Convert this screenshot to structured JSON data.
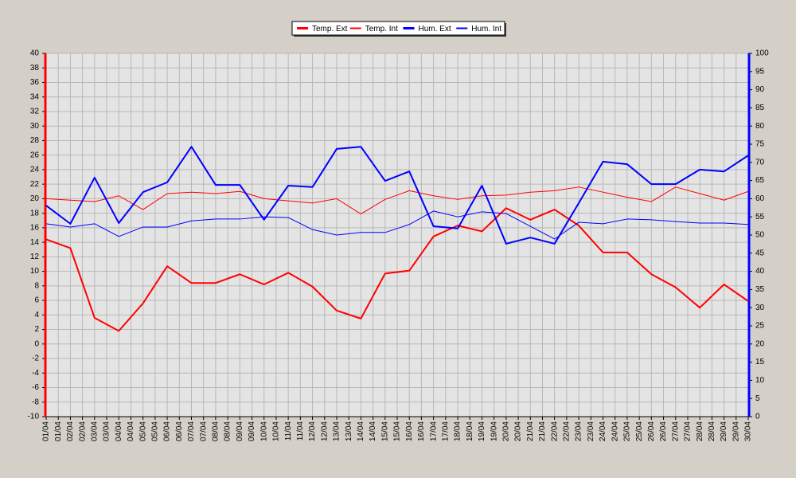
{
  "chart_data": {
    "type": "line",
    "x_labels": [
      "01/04",
      "01/04",
      "02/04",
      "02/04",
      "03/04",
      "03/04",
      "04/04",
      "04/04",
      "05/04",
      "05/04",
      "06/04",
      "06/04",
      "07/04",
      "07/04",
      "08/04",
      "08/04",
      "09/04",
      "09/04",
      "10/04",
      "10/04",
      "11/04",
      "11/04",
      "12/04",
      "12/04",
      "13/04",
      "13/04",
      "14/04",
      "14/04",
      "15/04",
      "15/04",
      "16/04",
      "16/04",
      "17/04",
      "17/04",
      "18/04",
      "18/04",
      "19/04",
      "19/04",
      "20/04",
      "20/04",
      "21/04",
      "21/04",
      "22/04",
      "22/04",
      "23/04",
      "23/04",
      "24/04",
      "24/04",
      "25/04",
      "25/04",
      "26/04",
      "26/04",
      "27/04",
      "27/04",
      "28/04",
      "28/04",
      "29/04",
      "29/04",
      "30/04"
    ],
    "series": [
      {
        "name": "Temp. Ext",
        "color": "#ff0000",
        "line_width": 2,
        "axis": "y",
        "values": [
          14.4,
          13.2,
          3.6,
          1.8,
          5.6,
          10.7,
          8.4,
          8.4,
          9.6,
          8.2,
          9.8,
          7.9,
          4.6,
          3.5,
          9.7,
          10.1,
          14.8,
          16.3,
          15.5,
          18.7,
          17.1,
          18.5,
          16.3,
          12.6,
          12.6,
          9.6,
          7.8,
          5.0,
          8.2,
          5.9
        ]
      },
      {
        "name": "Temp. Int",
        "color": "#ff0000",
        "line_width": 1,
        "axis": "y",
        "values": [
          20.0,
          19.8,
          19.6,
          20.4,
          18.5,
          20.7,
          20.9,
          20.7,
          21.0,
          20.0,
          19.7,
          19.4,
          20.0,
          17.9,
          19.9,
          21.1,
          20.4,
          19.9,
          20.4,
          20.5,
          20.9,
          21.1,
          21.6,
          20.9,
          20.2,
          19.6,
          21.6,
          20.7,
          19.8,
          21.0
        ]
      },
      {
        "name": "Hum. Ext",
        "color": "#0000ff",
        "line_width": 2,
        "axis": "y2",
        "values": [
          58.1,
          53.1,
          65.8,
          53.3,
          61.8,
          64.5,
          74.3,
          63.8,
          63.8,
          54.2,
          63.6,
          63.2,
          73.7,
          74.3,
          64.9,
          67.5,
          52.4,
          51.8,
          63.6,
          47.6,
          49.3,
          47.6,
          58.8,
          70.2,
          69.5,
          64.0,
          64.0,
          68.0,
          67.5,
          71.9
        ]
      },
      {
        "name": "Hum. Int",
        "color": "#0000ff",
        "line_width": 1,
        "axis": "y2",
        "values": [
          53.1,
          52.2,
          53.1,
          49.6,
          52.2,
          52.2,
          53.9,
          54.4,
          54.4,
          55.0,
          54.8,
          51.5,
          50.0,
          50.7,
          50.7,
          52.9,
          56.6,
          55.0,
          56.4,
          55.9,
          52.4,
          48.9,
          53.5,
          53.1,
          54.4,
          54.2,
          53.7,
          53.3,
          53.3,
          52.9
        ]
      }
    ],
    "ylim": [
      -10,
      40
    ],
    "yticks": [
      -10,
      -8,
      -6,
      -4,
      -2,
      0,
      2,
      4,
      6,
      8,
      10,
      12,
      14,
      16,
      18,
      20,
      22,
      24,
      26,
      28,
      30,
      32,
      34,
      36,
      38,
      40
    ],
    "y_axis_color": "#ff0000",
    "y2lim": [
      0,
      100
    ],
    "y2ticks": [
      0,
      5,
      10,
      15,
      20,
      25,
      30,
      35,
      40,
      45,
      50,
      55,
      60,
      65,
      70,
      75,
      80,
      85,
      90,
      95,
      100
    ],
    "y2_axis_color": "#0000ff",
    "grid": true,
    "legend": "top"
  }
}
